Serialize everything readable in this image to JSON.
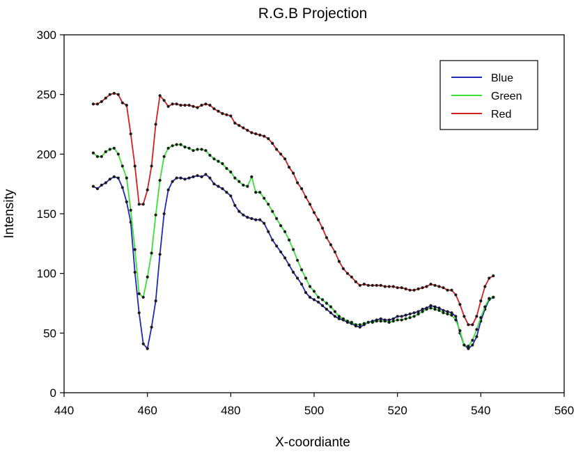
{
  "chart_data": {
    "type": "line",
    "title": "R.G.B Projection",
    "xlabel": "X-coordiante",
    "ylabel": "Intensity",
    "xlim": [
      440,
      560
    ],
    "ylim": [
      0,
      300
    ],
    "xticks": [
      "440",
      "460",
      "480",
      "500",
      "520",
      "540",
      "560"
    ],
    "yticks": [
      "0",
      "50",
      "100",
      "150",
      "200",
      "250",
      "300"
    ],
    "grid": false,
    "legend_position": "top-right",
    "marker_color": "#1a1a1a",
    "series": [
      {
        "name": "Blue",
        "color": "#2028b4",
        "x": [
          447,
          448,
          449,
          450,
          451,
          452,
          453,
          454,
          455,
          456,
          457,
          458,
          459,
          460,
          461,
          462,
          463,
          464,
          465,
          466,
          467,
          468,
          469,
          470,
          471,
          472,
          473,
          474,
          475,
          476,
          477,
          478,
          479,
          480,
          481,
          482,
          483,
          484,
          485,
          486,
          487,
          488,
          489,
          490,
          491,
          492,
          493,
          494,
          495,
          496,
          497,
          498,
          499,
          500,
          501,
          502,
          503,
          504,
          505,
          506,
          507,
          508,
          509,
          510,
          511,
          512,
          513,
          514,
          515,
          516,
          517,
          518,
          519,
          520,
          521,
          522,
          523,
          524,
          525,
          526,
          527,
          528,
          529,
          530,
          531,
          532,
          533,
          534,
          535,
          536,
          537,
          538,
          539,
          540,
          541,
          542,
          543
        ],
        "y": [
          173,
          171,
          174,
          176,
          179,
          181,
          180,
          172,
          160,
          143,
          101,
          67,
          41,
          37,
          55,
          77,
          116,
          150,
          170,
          177,
          180,
          180,
          179,
          180,
          181,
          182,
          181,
          183,
          180,
          175,
          173,
          171,
          168,
          165,
          157,
          152,
          149,
          147,
          146,
          145,
          145,
          142,
          135,
          128,
          123,
          118,
          113,
          107,
          101,
          96,
          91,
          84,
          80,
          78,
          76,
          73,
          70,
          67,
          64,
          62,
          61,
          59,
          58,
          56,
          55,
          57,
          59,
          60,
          61,
          62,
          61,
          61,
          62,
          64,
          64,
          65,
          66,
          67,
          68,
          70,
          71,
          73,
          72,
          71,
          69,
          68,
          67,
          64,
          50,
          40,
          37,
          40,
          47,
          60,
          70,
          78,
          80
        ]
      },
      {
        "name": "Green",
        "color": "#38e038",
        "x": [
          447,
          448,
          449,
          450,
          451,
          452,
          453,
          454,
          455,
          456,
          457,
          458,
          459,
          460,
          461,
          462,
          463,
          464,
          465,
          466,
          467,
          468,
          469,
          470,
          471,
          472,
          473,
          474,
          475,
          476,
          477,
          478,
          479,
          480,
          481,
          482,
          483,
          484,
          485,
          486,
          487,
          488,
          489,
          490,
          491,
          492,
          493,
          494,
          495,
          496,
          497,
          498,
          499,
          500,
          501,
          502,
          503,
          504,
          505,
          506,
          507,
          508,
          509,
          510,
          511,
          512,
          513,
          514,
          515,
          516,
          517,
          518,
          519,
          520,
          521,
          522,
          523,
          524,
          525,
          526,
          527,
          528,
          529,
          530,
          531,
          532,
          533,
          534,
          535,
          536,
          537,
          538,
          539,
          540,
          541,
          542,
          543
        ],
        "y": [
          201,
          198,
          198,
          202,
          204,
          205,
          200,
          190,
          180,
          153,
          120,
          83,
          80,
          97,
          117,
          149,
          178,
          198,
          205,
          207,
          208,
          208,
          206,
          205,
          203,
          204,
          204,
          203,
          199,
          196,
          194,
          192,
          188,
          185,
          180,
          177,
          174,
          173,
          181,
          168,
          168,
          163,
          158,
          152,
          146,
          140,
          135,
          128,
          120,
          111,
          103,
          96,
          89,
          85,
          80,
          78,
          75,
          72,
          68,
          64,
          62,
          60,
          59,
          57,
          57,
          58,
          59,
          59,
          60,
          60,
          60,
          59,
          60,
          61,
          61,
          62,
          63,
          64,
          66,
          68,
          70,
          71,
          70,
          69,
          67,
          66,
          65,
          61,
          52,
          40,
          39,
          44,
          53,
          63,
          72,
          79,
          80
        ]
      },
      {
        "name": "Red",
        "color": "#d02020",
        "x": [
          447,
          448,
          449,
          450,
          451,
          452,
          453,
          454,
          455,
          456,
          457,
          458,
          459,
          460,
          461,
          462,
          463,
          464,
          465,
          466,
          467,
          468,
          469,
          470,
          471,
          472,
          473,
          474,
          475,
          476,
          477,
          478,
          479,
          480,
          481,
          482,
          483,
          484,
          485,
          486,
          487,
          488,
          489,
          490,
          491,
          492,
          493,
          494,
          495,
          496,
          497,
          498,
          499,
          500,
          501,
          502,
          503,
          504,
          505,
          506,
          507,
          508,
          509,
          510,
          511,
          512,
          513,
          514,
          515,
          516,
          517,
          518,
          519,
          520,
          521,
          522,
          523,
          524,
          525,
          526,
          527,
          528,
          529,
          530,
          531,
          532,
          533,
          534,
          535,
          536,
          537,
          538,
          539,
          540,
          541,
          542,
          543
        ],
        "y": [
          242,
          242,
          244,
          247,
          250,
          251,
          250,
          243,
          241,
          217,
          190,
          158,
          158,
          170,
          190,
          225,
          249,
          245,
          240,
          242,
          242,
          241,
          241,
          241,
          240,
          239,
          241,
          242,
          241,
          238,
          236,
          234,
          233,
          232,
          226,
          224,
          222,
          220,
          218,
          217,
          216,
          215,
          213,
          209,
          204,
          200,
          196,
          189,
          184,
          176,
          171,
          164,
          158,
          151,
          145,
          138,
          130,
          124,
          118,
          110,
          104,
          100,
          97,
          93,
          90,
          91,
          90,
          90,
          90,
          90,
          89,
          89,
          89,
          88,
          88,
          87,
          86,
          86,
          87,
          88,
          89,
          91,
          90,
          89,
          88,
          86,
          86,
          82,
          74,
          64,
          57,
          57,
          64,
          77,
          89,
          96,
          98
        ]
      }
    ]
  }
}
